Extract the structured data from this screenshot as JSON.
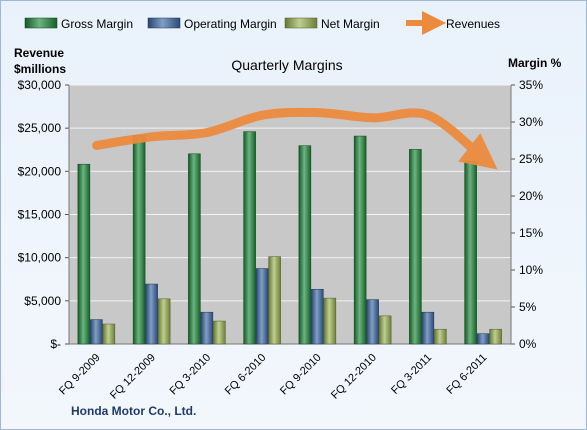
{
  "chart_data": {
    "type": "bar",
    "title": "Quarterly Margins",
    "footer_label": "Honda Motor Co., Ltd.",
    "left_axis": {
      "label_line1": "Revenue",
      "label_line2": "$millions",
      "range": [
        0,
        30000
      ],
      "ticks": [
        0,
        5000,
        10000,
        15000,
        20000,
        25000,
        30000
      ],
      "tick_labels": [
        "$-",
        "$5,000",
        "$10,000",
        "$15,000",
        "$20,000",
        "$25,000",
        "$30,000"
      ]
    },
    "right_axis": {
      "label": "Margin %",
      "range": [
        0,
        35
      ],
      "ticks": [
        0,
        5,
        10,
        15,
        20,
        25,
        30,
        35
      ],
      "tick_labels": [
        "0%",
        "5%",
        "10%",
        "15%",
        "20%",
        "25%",
        "30%",
        "35%"
      ]
    },
    "categories": [
      "FQ 9-2009",
      "FQ 12-2009",
      "FQ 3-2010",
      "FQ 6-2010",
      "FQ 9-2010",
      "FQ 12-2010",
      "FQ 3-2011",
      "FQ 6-2011"
    ],
    "series": [
      {
        "name": "Gross Margin",
        "axis": "right",
        "kind": "bar",
        "color": "#1e8a3a",
        "values": [
          24.3,
          28.2,
          25.7,
          28.7,
          26.8,
          28.1,
          26.3,
          24.7
        ]
      },
      {
        "name": "Operating Margin",
        "axis": "right",
        "kind": "bar",
        "color": "#3d6aa8",
        "values": [
          3.3,
          8.1,
          4.3,
          10.2,
          7.4,
          6.0,
          4.3,
          1.4
        ]
      },
      {
        "name": "Net Margin",
        "axis": "right",
        "kind": "bar",
        "color": "#9bb552",
        "values": [
          2.7,
          6.1,
          3.1,
          11.8,
          6.2,
          3.8,
          2.0,
          2.0
        ]
      },
      {
        "name": "Revenues",
        "axis": "left",
        "kind": "line",
        "color": "#ec8a3e",
        "values": [
          23000,
          24000,
          24500,
          26500,
          26800,
          26200,
          26500,
          21500
        ]
      }
    ],
    "legend_position": "top",
    "grid": true
  }
}
